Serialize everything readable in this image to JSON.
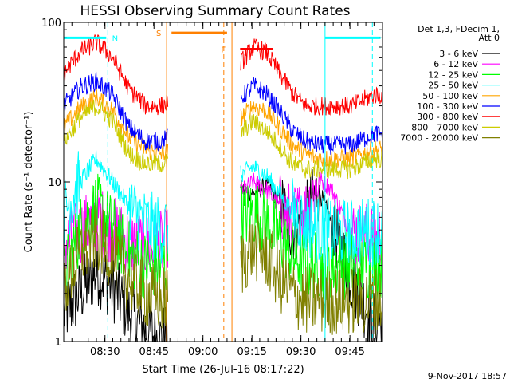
{
  "chart_data": {
    "type": "line",
    "title": "HESSI Observing Summary Count Rates",
    "xlabel": "Start Time (26-Jul-16 08:17:22)",
    "ylabel": "Count Rate (s⁻¹ detector⁻¹)",
    "x_range": [
      "08:17:22",
      "09:55:00"
    ],
    "xlim_minutes": [
      0,
      97.6
    ],
    "x_ticks": [
      "08:30",
      "08:45",
      "09:00",
      "09:15",
      "09:30",
      "09:45"
    ],
    "x_tick_minutes": [
      12.63,
      27.63,
      42.63,
      57.63,
      72.63,
      87.63
    ],
    "ylim": [
      1,
      100
    ],
    "y_scale": "log",
    "y_ticks": [
      "1",
      "10",
      "100"
    ],
    "grid": false,
    "legend_position": "right",
    "legend_header": [
      "Det 1,3, FDecim 1,",
      "Att 0"
    ],
    "data_gap_minutes": [
      32,
      54
    ],
    "series": [
      {
        "name": "3 - 6 keV",
        "color": "#000000",
        "x": [
          0,
          5,
          10,
          15,
          20,
          25,
          30,
          54,
          58,
          62,
          66,
          70,
          74,
          78,
          82,
          88,
          95
        ],
        "values": [
          1.5,
          2.0,
          2.8,
          2.2,
          1.5,
          1.2,
          1.0,
          9.0,
          8.5,
          9.5,
          7.5,
          5.0,
          6.0,
          9.0,
          5.5,
          2.5,
          1.3
        ]
      },
      {
        "name": "6 - 12 keV",
        "color": "#ff00ff",
        "x": [
          0,
          5,
          10,
          15,
          20,
          25,
          30,
          54,
          58,
          62,
          66,
          70,
          74,
          78,
          82,
          88,
          95
        ],
        "values": [
          4.0,
          4.8,
          6.0,
          5.0,
          4.2,
          4.0,
          4.0,
          8.5,
          10.0,
          9.0,
          7.0,
          6.0,
          6.5,
          10.5,
          9.0,
          4.8,
          4.5
        ]
      },
      {
        "name": "12 - 25 keV",
        "color": "#00ff00",
        "x": [
          0,
          5,
          10,
          15,
          20,
          25,
          30,
          54,
          58,
          62,
          66,
          70,
          74,
          78,
          82,
          88,
          95
        ],
        "values": [
          2.5,
          5.0,
          7.0,
          5.0,
          3.5,
          3.0,
          3.0,
          6.0,
          6.5,
          5.5,
          4.5,
          3.5,
          3.0,
          3.0,
          3.0,
          3.0,
          3.0
        ]
      },
      {
        "name": "25 - 50 keV",
        "color": "#00ffff",
        "x": [
          0,
          5,
          10,
          15,
          20,
          25,
          30,
          54,
          58,
          62,
          66,
          70,
          74,
          78,
          82,
          88,
          95
        ],
        "values": [
          6.5,
          10.0,
          14.0,
          10.0,
          7.0,
          5.5,
          5.0,
          11.0,
          12.5,
          11.0,
          8.5,
          6.5,
          5.5,
          5.0,
          4.8,
          4.8,
          5.0
        ]
      },
      {
        "name": "50 - 100 keV",
        "color": "#ffa500",
        "x": [
          0,
          5,
          10,
          15,
          20,
          25,
          30,
          54,
          58,
          62,
          66,
          70,
          74,
          78,
          82,
          88,
          95
        ],
        "values": [
          22,
          29,
          34,
          28,
          19,
          16,
          15,
          25,
          30,
          28,
          22,
          17,
          15,
          14,
          14,
          14,
          16
        ]
      },
      {
        "name": "100 - 300 keV",
        "color": "#0000ff",
        "x": [
          0,
          5,
          10,
          15,
          20,
          25,
          30,
          54,
          58,
          62,
          66,
          70,
          74,
          78,
          82,
          88,
          95
        ],
        "values": [
          30,
          39,
          43,
          35,
          22,
          18,
          18,
          33,
          40,
          36,
          28,
          21,
          18,
          17,
          17,
          17,
          20
        ]
      },
      {
        "name": "300 - 800 keV",
        "color": "#ff0000",
        "x": [
          0,
          5,
          10,
          15,
          20,
          25,
          30,
          54,
          58,
          62,
          66,
          70,
          74,
          78,
          82,
          88,
          95
        ],
        "values": [
          48,
          65,
          75,
          60,
          38,
          30,
          30,
          55,
          70,
          65,
          48,
          36,
          30,
          30,
          30,
          30,
          35
        ]
      },
      {
        "name": "800 - 7000 keV",
        "color": "#cccc00",
        "x": [
          0,
          5,
          10,
          15,
          20,
          25,
          30,
          54,
          58,
          62,
          66,
          70,
          74,
          78,
          82,
          88,
          95
        ],
        "values": [
          18,
          25,
          30,
          24,
          15,
          13,
          13,
          20,
          24,
          21,
          17,
          13,
          12,
          12,
          12,
          12,
          14
        ]
      },
      {
        "name": "7000 - 20000 keV",
        "color": "#808000",
        "x": [
          0,
          5,
          10,
          15,
          20,
          25,
          30,
          54,
          58,
          62,
          66,
          70,
          74,
          78,
          82,
          88,
          95
        ],
        "values": [
          2.2,
          3.5,
          4.5,
          3.5,
          2.5,
          2.0,
          1.8,
          3.0,
          4.0,
          3.5,
          2.5,
          2.0,
          1.8,
          1.8,
          1.8,
          1.8,
          1.8
        ]
      }
    ],
    "annotations": [
      {
        "label": "N",
        "color": "#00ffff"
      },
      {
        "label": "S",
        "color": "#ff8000"
      },
      {
        "label": "F",
        "color": "#ff8000"
      }
    ],
    "flag_bars": [
      {
        "name": "night",
        "color": "#00ffff",
        "x_start": 0,
        "x_end": 13,
        "level": 80
      },
      {
        "name": "saa",
        "color": "#ff8000",
        "x_start": 33,
        "x_end": 50,
        "level": 86
      },
      {
        "name": "flare",
        "color": "#ff0000",
        "x_start": 54,
        "x_end": 64,
        "level": 68
      },
      {
        "name": "night",
        "color": "#00ffff",
        "x_start": 80,
        "x_end": 97,
        "level": 80
      }
    ],
    "event_lines": [
      {
        "x": 31.5,
        "color": "#ff8000",
        "style": "solid"
      },
      {
        "x": 49.0,
        "color": "#ff8000",
        "style": "dashed"
      },
      {
        "x": 51.5,
        "color": "#ff8000",
        "style": "solid"
      },
      {
        "x": 13.5,
        "color": "#00ffff",
        "style": "dashed"
      },
      {
        "x": 80.0,
        "color": "#00ffff",
        "style": "solid"
      },
      {
        "x": 94.5,
        "color": "#00ffff",
        "style": "dashed"
      }
    ]
  },
  "footer": {
    "date_stamp": "9-Nov-2017 18:57"
  }
}
